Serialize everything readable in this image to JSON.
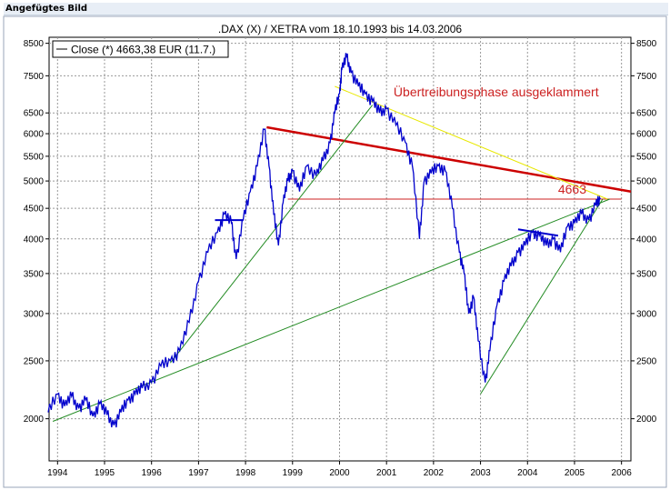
{
  "header": {
    "label": "Angefügtes Bild"
  },
  "chart_data": {
    "type": "line",
    "title": ".DAX (X) / XETRA vom 18.10.1993 bis 14.03.2006",
    "legend": {
      "label": "Close (*) 4663,38 EUR (11.7.)",
      "placement": "top-left"
    },
    "y_scale": "log",
    "ylim": [
      1700,
      8700
    ],
    "xlim": [
      1993.82,
      2006.2
    ],
    "y_ticks": [
      2000,
      2500,
      3000,
      3500,
      4000,
      4500,
      5000,
      5500,
      6000,
      6500,
      7500,
      8500
    ],
    "x_ticks": [
      1994,
      1995,
      1996,
      1997,
      1998,
      1999,
      2000,
      2001,
      2002,
      2003,
      2004,
      2005,
      2006
    ],
    "grid": true,
    "colors": {
      "series": "#0000cc",
      "resistance": "#cc0000",
      "support": "#228b22",
      "exaggeration": "#e8e800",
      "annotation": "#cc2222"
    },
    "series": [
      {
        "name": "Close (*)",
        "x": [
          1993.8,
          1994.0,
          1994.15,
          1994.3,
          1994.45,
          1994.6,
          1994.75,
          1994.9,
          1995.05,
          1995.2,
          1995.35,
          1995.5,
          1995.65,
          1995.8,
          1996.0,
          1996.2,
          1996.4,
          1996.6,
          1996.8,
          1997.0,
          1997.2,
          1997.4,
          1997.55,
          1997.7,
          1997.8,
          1997.95,
          1998.1,
          1998.25,
          1998.4,
          1998.5,
          1998.6,
          1998.7,
          1998.8,
          1998.9,
          1999.0,
          1999.15,
          1999.3,
          1999.5,
          1999.65,
          1999.8,
          1999.9,
          2000.0,
          2000.05,
          2000.15,
          2000.25,
          2000.4,
          2000.55,
          2000.7,
          2000.85,
          2001.0,
          2001.2,
          2001.4,
          2001.55,
          2001.7,
          2001.8,
          2001.95,
          2002.1,
          2002.25,
          2002.4,
          2002.55,
          2002.65,
          2002.75,
          2002.85,
          2002.95,
          2003.1,
          2003.2,
          2003.35,
          2003.5,
          2003.65,
          2003.8,
          2003.95,
          2004.1,
          2004.25,
          2004.4,
          2004.55,
          2004.7,
          2004.85,
          2005.0,
          2005.15,
          2005.3,
          2005.45,
          2005.55
        ],
        "values": [
          2050,
          2200,
          2100,
          2180,
          2080,
          2150,
          2020,
          2120,
          2030,
          1950,
          2050,
          2150,
          2200,
          2250,
          2300,
          2450,
          2500,
          2600,
          2900,
          3400,
          3800,
          4100,
          4400,
          4250,
          3700,
          4300,
          4800,
          5300,
          6100,
          5300,
          4400,
          3900,
          4600,
          5000,
          5200,
          4800,
          5300,
          5100,
          5400,
          5800,
          6500,
          7000,
          7700,
          8050,
          7600,
          7200,
          7000,
          6800,
          6500,
          6600,
          6200,
          5800,
          5300,
          4000,
          5000,
          5150,
          5300,
          5200,
          4500,
          3800,
          3500,
          3000,
          3200,
          2700,
          2300,
          2600,
          3100,
          3400,
          3600,
          3800,
          3900,
          4100,
          4050,
          3900,
          4000,
          3800,
          4200,
          4250,
          4400,
          4300,
          4550,
          4663
        ]
      }
    ],
    "trendlines": [
      {
        "name": "resistance-upper",
        "color": "#cc0000",
        "x": [
          1998.45,
          2006.2
        ],
        "values": [
          6150,
          4800
        ]
      },
      {
        "name": "resistance-thin",
        "color": "#cc2222",
        "x": [
          1998.9,
          2006.0
        ],
        "values": [
          4663,
          4663
        ]
      },
      {
        "name": "exaggeration",
        "color": "#e8e800",
        "x": [
          1999.9,
          2005.7
        ],
        "values": [
          7200,
          4663
        ]
      },
      {
        "name": "support-long",
        "color": "#228b22",
        "x": [
          1993.9,
          2005.75
        ],
        "values": [
          1980,
          4663
        ]
      },
      {
        "name": "support-mid",
        "color": "#228b22",
        "x": [
          1996.4,
          2000.7
        ],
        "values": [
          2480,
          6700
        ]
      },
      {
        "name": "support-short",
        "color": "#228b22",
        "x": [
          2003.0,
          2005.6
        ],
        "values": [
          2200,
          4663
        ]
      },
      {
        "name": "range-1997",
        "color": "#0000cc",
        "x": [
          1997.35,
          1997.95
        ],
        "values": [
          4300,
          4300
        ]
      },
      {
        "name": "range-2004",
        "color": "#0000cc",
        "x": [
          2003.8,
          2004.65
        ],
        "values": [
          4150,
          4050
        ]
      }
    ],
    "annotations": [
      {
        "text": "Übertreibungsphase ausgeklammert",
        "x": 2001.15,
        "y": 7050
      },
      {
        "text": "4663",
        "x": 2004.65,
        "y": 4663
      }
    ]
  }
}
